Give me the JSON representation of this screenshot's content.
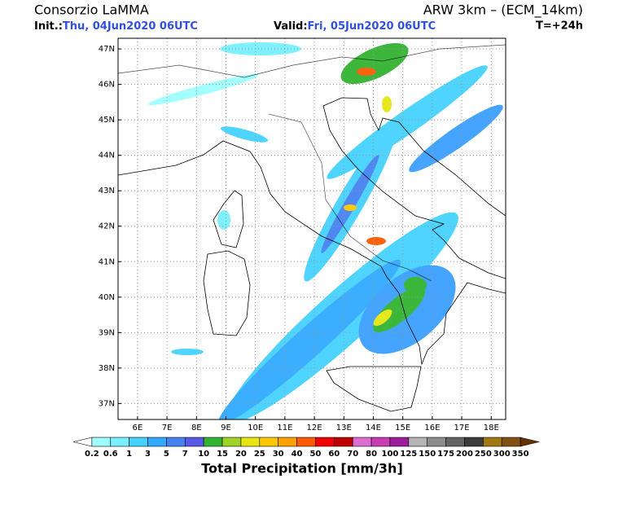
{
  "header": {
    "title": "Consorzio LaMMA",
    "model": "ARW 3km – (ECM_14km)",
    "init_label": "Init.:",
    "init_time": "Thu, 04Jun2020 06UTC",
    "valid_label": "Valid:",
    "valid_time": "Fri, 05Jun2020 06UTC",
    "lead": "T=+24h"
  },
  "map": {
    "lon_range": [
      5.34,
      18.49
    ],
    "lat_range": [
      36.55,
      47.3
    ],
    "lon_ticks": [
      {
        "value": 6,
        "label": "6E"
      },
      {
        "value": 7,
        "label": "7E"
      },
      {
        "value": 8,
        "label": "8E"
      },
      {
        "value": 9,
        "label": "9E"
      },
      {
        "value": 10,
        "label": "10E"
      },
      {
        "value": 11,
        "label": "11E"
      },
      {
        "value": 12,
        "label": "12E"
      },
      {
        "value": 13,
        "label": "13E"
      },
      {
        "value": 14,
        "label": "14E"
      },
      {
        "value": 15,
        "label": "15E"
      },
      {
        "value": 16,
        "label": "16E"
      },
      {
        "value": 17,
        "label": "17E"
      },
      {
        "value": 18,
        "label": "18E"
      }
    ],
    "lat_ticks": [
      {
        "value": 37,
        "label": "37N"
      },
      {
        "value": 38,
        "label": "38N"
      },
      {
        "value": 39,
        "label": "39N"
      },
      {
        "value": 40,
        "label": "40N"
      },
      {
        "value": 41,
        "label": "41N"
      },
      {
        "value": 42,
        "label": "42N"
      },
      {
        "value": 43,
        "label": "43N"
      },
      {
        "value": 44,
        "label": "44N"
      },
      {
        "value": 45,
        "label": "45N"
      },
      {
        "value": 46,
        "label": "46N"
      },
      {
        "value": 47,
        "label": "47N"
      }
    ],
    "grid": true
  },
  "colorbar": {
    "title": "Total Precipitation [mm/3h]",
    "levels": [
      0.2,
      0.6,
      1,
      3,
      5,
      7,
      10,
      15,
      20,
      25,
      30,
      40,
      50,
      60,
      70,
      80,
      100,
      125,
      150,
      175,
      200,
      250,
      300,
      350
    ],
    "colors": [
      "#ffffff",
      "#a0ffff",
      "#78f0ff",
      "#46d2ff",
      "#32aaff",
      "#4682f0",
      "#5a5ae6",
      "#32b432",
      "#a0d228",
      "#e6e614",
      "#ffc800",
      "#ffa000",
      "#ff5a00",
      "#f00000",
      "#be0000",
      "#dc6ed2",
      "#c83cb4",
      "#9b1e9b",
      "#b4b4b4",
      "#8c8c8c",
      "#646464",
      "#3c3c3c",
      "#a07814",
      "#825014",
      "#643200"
    ]
  }
}
